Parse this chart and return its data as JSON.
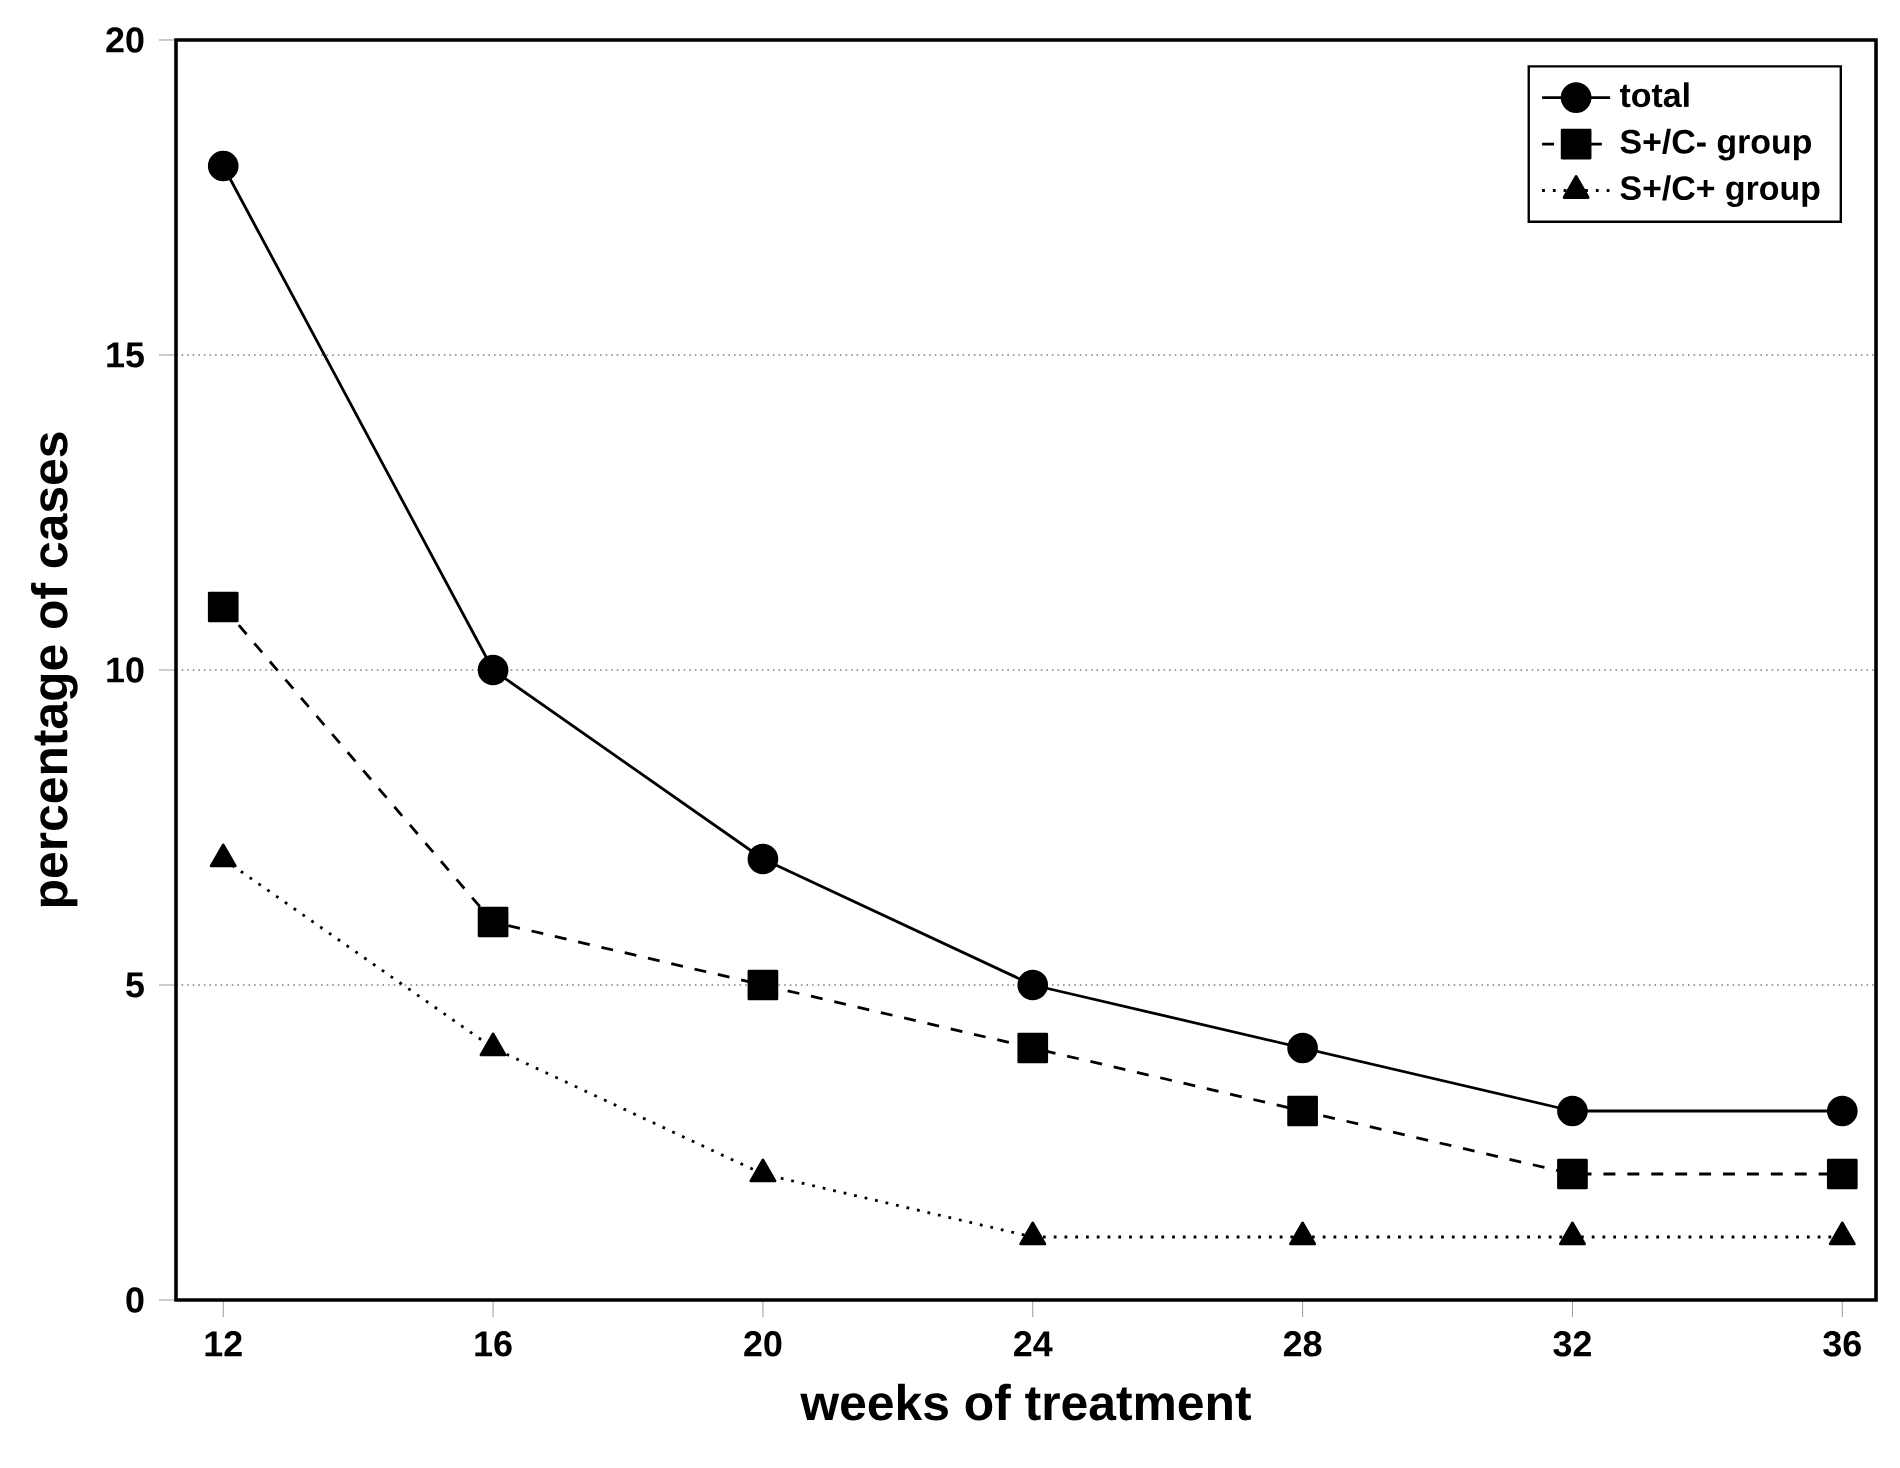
{
  "chart_data": {
    "type": "line",
    "xlabel": "weeks of treatment",
    "ylabel": "percentage of cases",
    "x": [
      12,
      16,
      20,
      24,
      28,
      32,
      36
    ],
    "series": [
      {
        "name": "total",
        "color": "#000000",
        "marker": "circle",
        "line_style": "solid",
        "values": [
          18,
          10,
          7,
          5,
          4,
          3,
          3
        ]
      },
      {
        "name": "S+/C- group",
        "color": "#000000",
        "marker": "square",
        "line_style": "dashed",
        "values": [
          11,
          6,
          5,
          4,
          3,
          2,
          2
        ]
      },
      {
        "name": "S+/C+ group",
        "color": "#000000",
        "marker": "triangle",
        "line_style": "dotted",
        "values": [
          7,
          4,
          2,
          1,
          1,
          1,
          1
        ]
      }
    ],
    "xlim": [
      11.3,
      36.5
    ],
    "ylim": [
      0,
      20
    ],
    "xticks": [
      12,
      16,
      20,
      24,
      28,
      32,
      36
    ],
    "yticks": [
      0,
      5,
      10,
      15,
      20
    ],
    "grid": "y",
    "legend": "top right"
  }
}
